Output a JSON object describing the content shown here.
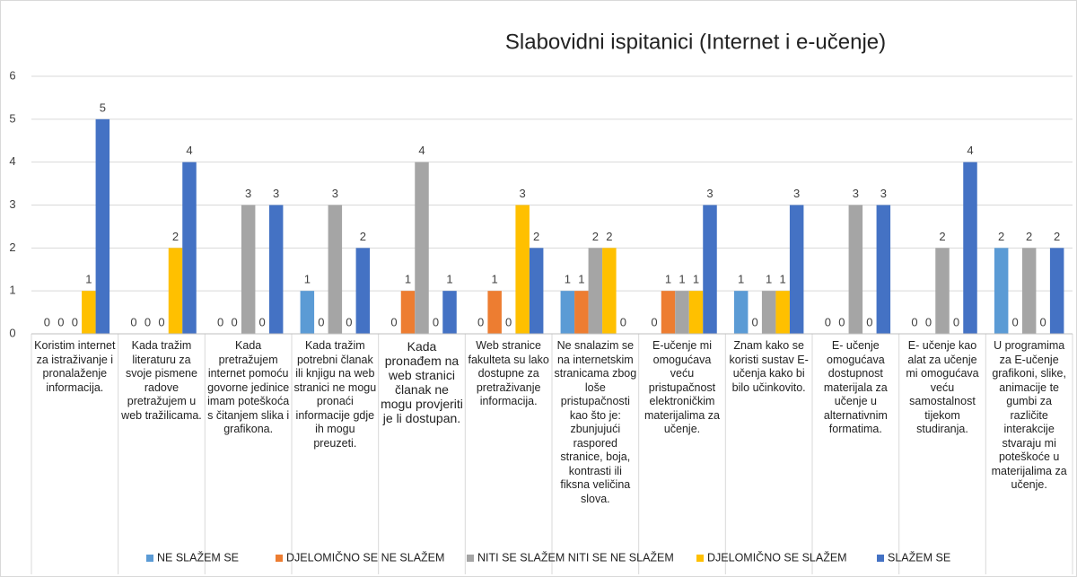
{
  "chart_data": {
    "type": "bar",
    "title": "Slabovidni ispitanici (Internet i e-učenje)",
    "categories": [
      "Koristim internet za istraživanje i pronalaženje informacija.",
      "Kada tražim literaturu za svoje pismene radove pretražujem u web tražilicama.",
      "Kada pretražujem internet pomoću govorne jedinice imam poteškoća s čitanjem slika i grafikona.",
      "Kada tražim potrebni članak ili knjigu na web stranici ne mogu pronaći informacije gdje ih mogu preuzeti.",
      "Kada pronađem na web stranici članak ne mogu provjeriti je li dostupan.",
      "Web stranice fakulteta su lako dostupne za pretraživanje informacija.",
      "Ne snalazim se na internetskim stranicama zbog loše pristupačnosti kao što je: zbunjujući raspored stranice, boja, kontrasti ili fiksna veličina slova.",
      "E-učenje mi omogućava veću pristupačnost elektroničkim materijalima za učenje.",
      "Znam kako se koristi sustav E-učenja kako bi bilo učinkovito.",
      "E- učenje omogućava dostupnost materijala za učenje u alternativnim formatima.",
      "E- učenje kao alat za učenje mi omogućava veću samostalnost tijekom studiranja.",
      "U programima za E-učenje grafikoni, slike, animacije te gumbi za različite interakcije stvaraju mi poteškoće u materijalima za učenje."
    ],
    "series": [
      {
        "name": "NE SLAŽEM SE",
        "color": "#5b9bd5",
        "values": [
          0,
          0,
          0,
          1,
          0,
          0,
          1,
          0,
          1,
          0,
          0,
          2
        ]
      },
      {
        "name": "DJELOMIČNO SE NE SLAŽEM",
        "color": "#ed7d31",
        "values": [
          0,
          0,
          0,
          0,
          1,
          1,
          1,
          1,
          0,
          0,
          0,
          0
        ]
      },
      {
        "name": "NITI SE SLAŽEM NITI SE NE SLAŽEM",
        "color": "#a5a5a5",
        "values": [
          0,
          0,
          3,
          3,
          4,
          0,
          2,
          1,
          1,
          3,
          2,
          2
        ]
      },
      {
        "name": "DJELOMIČNO SE SLAŽEM",
        "color": "#ffc000",
        "values": [
          1,
          2,
          0,
          0,
          0,
          3,
          2,
          1,
          1,
          0,
          0,
          0
        ]
      },
      {
        "name": "SLAŽEM SE",
        "color": "#4472c4",
        "values": [
          5,
          4,
          3,
          2,
          1,
          2,
          0,
          3,
          3,
          3,
          4,
          2
        ]
      }
    ],
    "ylim": [
      0,
      6
    ],
    "yticks": [
      0,
      1,
      2,
      3,
      4,
      5,
      6
    ],
    "grid": true,
    "legend": "bottom"
  }
}
